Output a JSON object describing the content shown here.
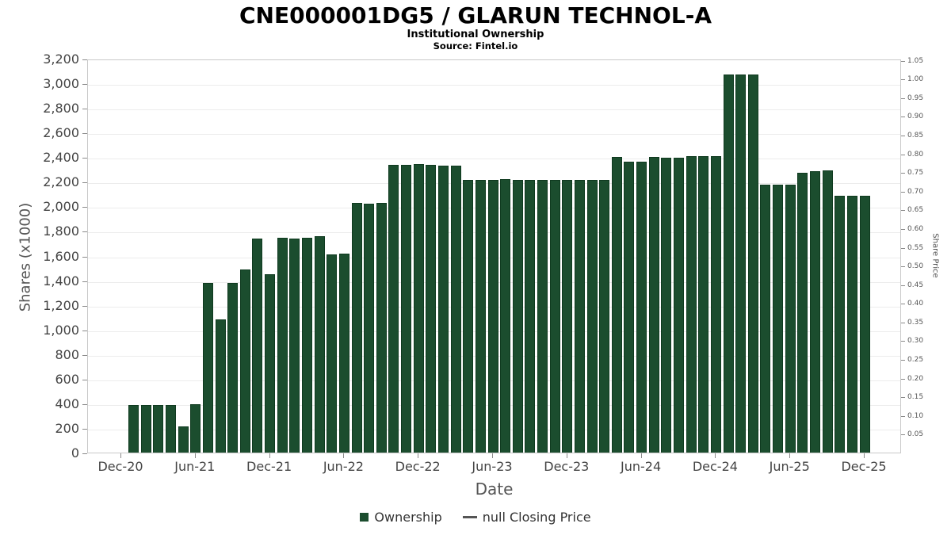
{
  "chart_data": {
    "type": "bar",
    "title": "CNE000001DG5 / GLARUN TECHNOL-A",
    "subtitle": "Institutional Ownership",
    "source": "Source: Fintel.io",
    "xlabel": "Date",
    "ylabel_left": "Shares (x1000)",
    "ylabel_right": "Share Price",
    "grid": true,
    "legend_position": "bottom",
    "bar_color": "#1B4D2E",
    "left_axis": {
      "min": 0,
      "max": 3200,
      "step": 200
    },
    "right_axis": {
      "min": 0,
      "max": 1.0535,
      "tick_min": 0.05,
      "tick_max": 1.05,
      "step": 0.05
    },
    "left_tick_labels": [
      "0",
      "200",
      "400",
      "600",
      "800",
      "1,000",
      "1,200",
      "1,400",
      "1,600",
      "1,800",
      "2,000",
      "2,200",
      "2,400",
      "2,600",
      "2,800",
      "3,000",
      "3,200"
    ],
    "right_tick_labels": [
      "0.05",
      "0.10",
      "0.15",
      "0.20",
      "0.25",
      "0.30",
      "0.35",
      "0.40",
      "0.45",
      "0.50",
      "0.55",
      "0.60",
      "0.65",
      "0.70",
      "0.75",
      "0.80",
      "0.85",
      "0.90",
      "0.95",
      "1.00",
      "1.05"
    ],
    "x_tick_labels": [
      "Dec-20",
      "Jun-21",
      "Dec-21",
      "Jun-22",
      "Dec-22",
      "Jun-23",
      "Dec-23",
      "Jun-24",
      "Dec-24",
      "Jun-25",
      "Dec-25"
    ],
    "categories": [
      "Jan-21",
      "Feb-21",
      "Mar-21",
      "Apr-21",
      "May-21",
      "Jun-21",
      "Jul-21",
      "Aug-21",
      "Sep-21",
      "Oct-21",
      "Nov-21",
      "Dec-21",
      "Jan-22",
      "Feb-22",
      "Mar-22",
      "Apr-22",
      "May-22",
      "Jun-22",
      "Jul-22",
      "Aug-22",
      "Sep-22",
      "Oct-22",
      "Nov-22",
      "Dec-22",
      "Jan-23",
      "Feb-23",
      "Mar-23",
      "Apr-23",
      "May-23",
      "Jun-23",
      "Jul-23",
      "Aug-23",
      "Sep-23",
      "Oct-23",
      "Nov-23",
      "Dec-23",
      "Jan-24",
      "Feb-24",
      "Mar-24",
      "Apr-24",
      "May-24",
      "Jun-24",
      "Jul-24",
      "Aug-24",
      "Sep-24",
      "Oct-24",
      "Nov-24",
      "Dec-24",
      "Jan-25",
      "Feb-25",
      "Mar-25",
      "Apr-25",
      "May-25",
      "Jun-25",
      "Jul-25",
      "Aug-25",
      "Sep-25",
      "Oct-25",
      "Nov-25",
      "Dec-25"
    ],
    "values": [
      385,
      385,
      385,
      385,
      210,
      395,
      1375,
      1080,
      1375,
      1490,
      1740,
      1450,
      1745,
      1740,
      1745,
      1755,
      1610,
      1615,
      2030,
      2025,
      2030,
      2340,
      2340,
      2345,
      2335,
      2330,
      2330,
      2215,
      2215,
      2215,
      2220,
      2215,
      2215,
      2215,
      2215,
      2215,
      2215,
      2215,
      2215,
      2400,
      2365,
      2365,
      2400,
      2395,
      2395,
      2405,
      2410,
      2410,
      3070,
      3070,
      3070,
      2175,
      2175,
      2175,
      2270,
      2285,
      2290,
      2085,
      2085,
      2085
    ],
    "legend": [
      {
        "label": "Ownership",
        "marker": "square",
        "color": "#1B4D2E"
      },
      {
        "label": "null Closing Price",
        "marker": "line",
        "color": "#555555"
      }
    ]
  }
}
